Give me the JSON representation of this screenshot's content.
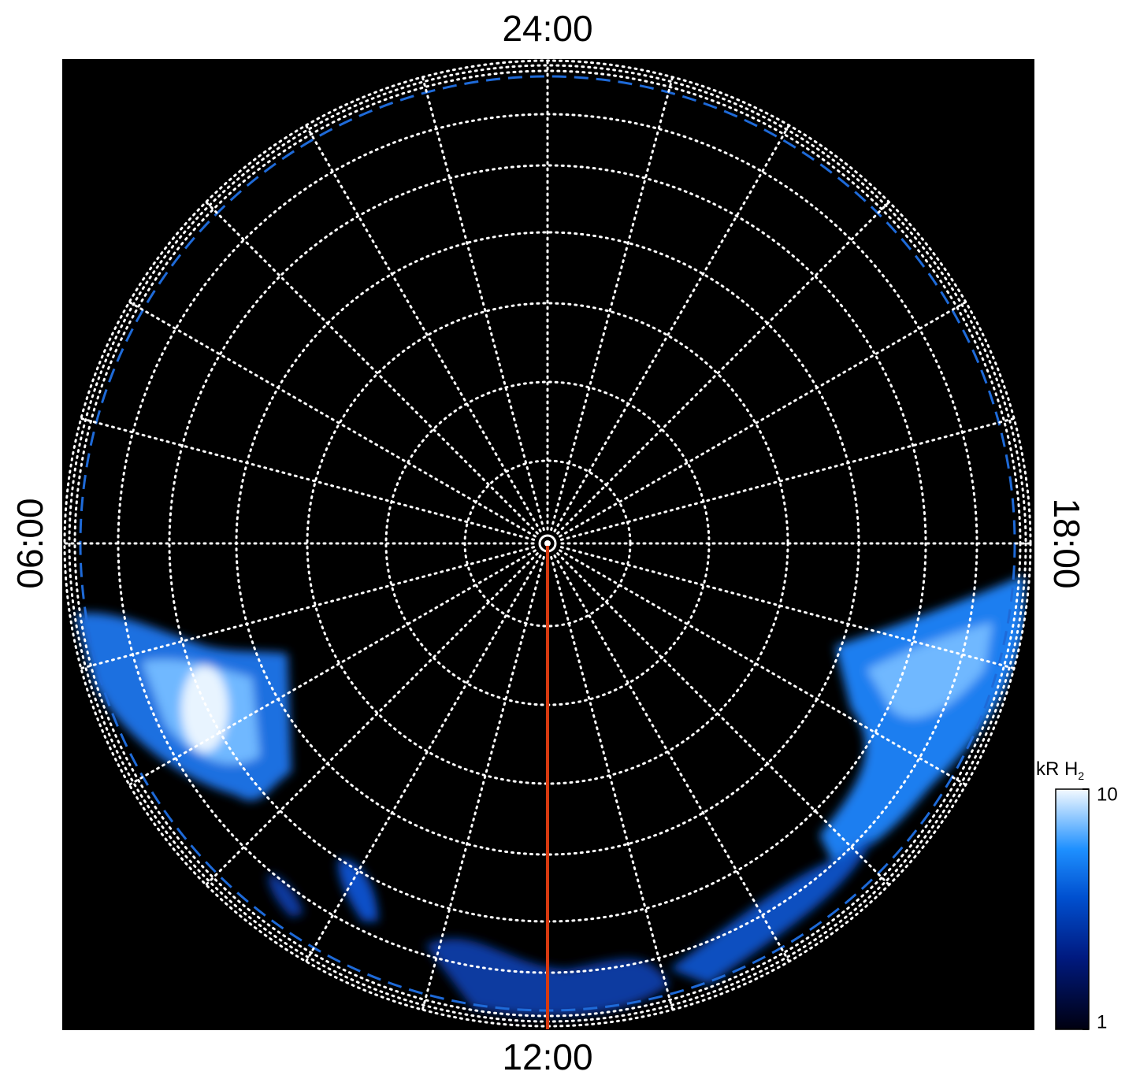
{
  "chart_data": {
    "type": "polar",
    "angle_labels": [
      "24:00",
      "06:00",
      "12:00",
      "18:00"
    ],
    "colorbar": {
      "label": "kR H",
      "label_sub": "2",
      "lim": [
        1,
        10
      ],
      "ticks": [
        1,
        10
      ],
      "log": true
    }
  }
}
